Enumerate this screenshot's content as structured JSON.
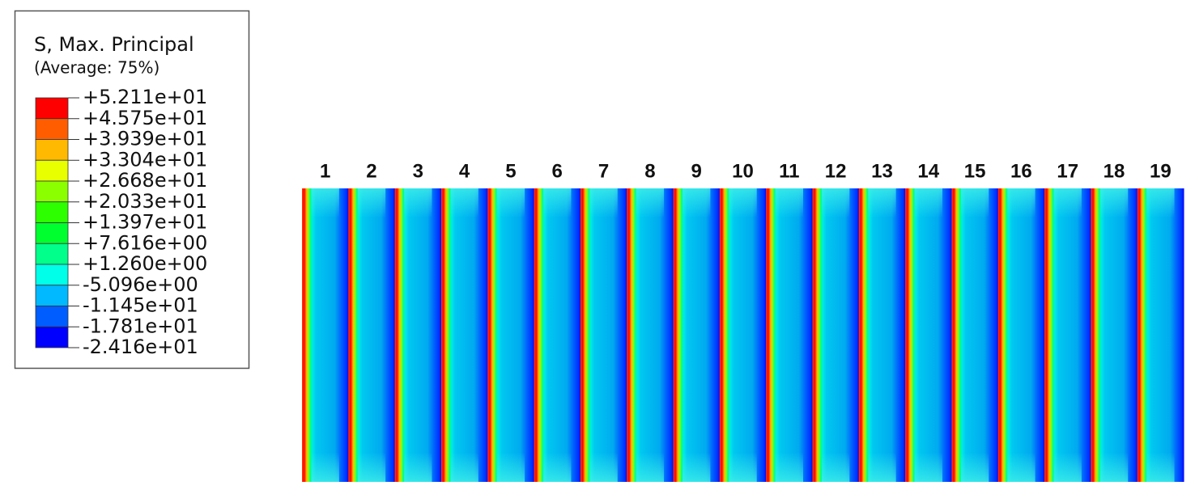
{
  "legend": {
    "title": "S, Max. Principal",
    "subtitle": "(Average: 75%)",
    "labels": [
      "+5.211e+01",
      "+4.575e+01",
      "+3.939e+01",
      "+3.304e+01",
      "+2.668e+01",
      "+2.033e+01",
      "+1.397e+01",
      "+7.616e+00",
      "+1.260e+00",
      "-5.096e+00",
      "-1.145e+01",
      "-1.781e+01",
      "-2.416e+01"
    ],
    "colors": [
      "#ff0000",
      "#ff5d00",
      "#ffb900",
      "#e8ff00",
      "#8bff00",
      "#2eff00",
      "#00ff2e",
      "#00ff8b",
      "#00ffe8",
      "#00b9ff",
      "#005dff",
      "#0000ff"
    ]
  },
  "strips": {
    "labels": [
      "1",
      "2",
      "3",
      "4",
      "5",
      "6",
      "7",
      "8",
      "9",
      "10",
      "11",
      "12",
      "13",
      "14",
      "15",
      "16",
      "17",
      "18",
      "19"
    ]
  }
}
